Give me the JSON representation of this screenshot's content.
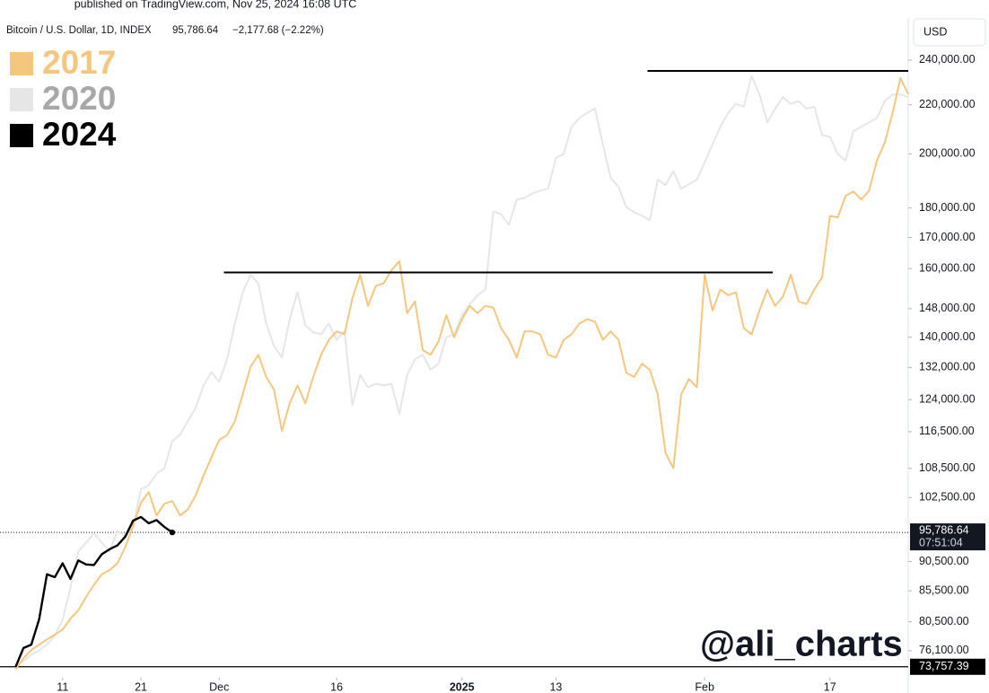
{
  "chart_data": {
    "type": "line",
    "source": "published on TradingView.com, Nov 25, 2024 16:08 UTC",
    "title": "Bitcoin / U.S. Dollar, 1D, INDEX",
    "price": "95,786.64",
    "change": "−2,177.68 (−2.22%)",
    "currency": "USD",
    "watermark": "@ali_charts",
    "countdown": "07:51:04",
    "log_scale": true,
    "grid": false,
    "legend": "top-left",
    "xlim": [
      -2,
      114
    ],
    "ylim": [
      72200,
      260500
    ],
    "xticks": [
      {
        "value": 6,
        "label": "11"
      },
      {
        "value": 16,
        "label": "21"
      },
      {
        "value": 26,
        "label": "Dec"
      },
      {
        "value": 41,
        "label": "16"
      },
      {
        "value": 57,
        "label": "2025",
        "bold": true
      },
      {
        "value": 69,
        "label": "13"
      },
      {
        "value": 88,
        "label": "Feb"
      },
      {
        "value": 104,
        "label": "17"
      }
    ],
    "yticks": [
      {
        "value": 240000,
        "label": "240,000.00"
      },
      {
        "value": 220000,
        "label": "220,000.00"
      },
      {
        "value": 200000,
        "label": "200,000.00"
      },
      {
        "value": 180000,
        "label": "180,000.00"
      },
      {
        "value": 170000,
        "label": "170,000.00"
      },
      {
        "value": 160000,
        "label": "160,000.00"
      },
      {
        "value": 148000,
        "label": "148,000.00"
      },
      {
        "value": 140000,
        "label": "140,000.00"
      },
      {
        "value": 132000,
        "label": "132,000.00"
      },
      {
        "value": 124000,
        "label": "124,000.00"
      },
      {
        "value": 116500,
        "label": "116,500.00"
      },
      {
        "value": 108500,
        "label": "108,500.00"
      },
      {
        "value": 102500,
        "label": "102,500.00"
      },
      {
        "value": 90500,
        "label": "90,500.00"
      },
      {
        "value": 85500,
        "label": "85,500.00"
      },
      {
        "value": 80500,
        "label": "80,500.00"
      },
      {
        "value": 76100,
        "label": "76,100.00"
      }
    ],
    "x": [
      0,
      1,
      2,
      3,
      4,
      5,
      6,
      7,
      8,
      9,
      10,
      11,
      12,
      13,
      14,
      15,
      16,
      17,
      18,
      19,
      20,
      21,
      22,
      23,
      24,
      25,
      26,
      27,
      28,
      29,
      30,
      31,
      32,
      33,
      34,
      35,
      36,
      37,
      38,
      39,
      40,
      41,
      42,
      43,
      44,
      45,
      46,
      47,
      48,
      49,
      50,
      51,
      52,
      53,
      54,
      55,
      56,
      57,
      58,
      59,
      60,
      61,
      62,
      63,
      64,
      65,
      66,
      67,
      68,
      69,
      70,
      71,
      72,
      73,
      74,
      75,
      76,
      77,
      78,
      79,
      80,
      81,
      82,
      83,
      84,
      85,
      86,
      87,
      88,
      89,
      90,
      91,
      92,
      93,
      94,
      95,
      96,
      97,
      98,
      99,
      100,
      101,
      102,
      103,
      104,
      105,
      106,
      107,
      108,
      109,
      110,
      111,
      112,
      113,
      114
    ],
    "series": [
      {
        "name": "2017",
        "color": "#f5c77e",
        "legend_text_color": "#f5c77e",
        "width": 2,
        "values": [
          73400,
          75000,
          76200,
          77000,
          77800,
          78500,
          79300,
          81000,
          82300,
          84500,
          86500,
          88300,
          89000,
          90200,
          93100,
          97000,
          101500,
          103600,
          99000,
          101300,
          101800,
          99000,
          100200,
          102900,
          107000,
          110800,
          114700,
          115700,
          118900,
          125300,
          132200,
          135300,
          129600,
          126400,
          116700,
          123100,
          127500,
          123100,
          129600,
          135300,
          139300,
          141600,
          140800,
          151000,
          158100,
          148800,
          154700,
          155500,
          159500,
          162300,
          146700,
          150100,
          136500,
          135300,
          138800,
          146100,
          140000,
          145000,
          148800,
          146700,
          148800,
          148300,
          142500,
          139300,
          134600,
          141600,
          141600,
          140800,
          135300,
          134600,
          139300,
          140800,
          143800,
          145000,
          144300,
          139300,
          141600,
          139300,
          130600,
          129600,
          133000,
          131400,
          125300,
          111800,
          108500,
          125300,
          129100,
          127000,
          158100,
          147500,
          153600,
          151900,
          152800,
          142500,
          140800,
          147500,
          153600,
          148800,
          151500,
          158100,
          150100,
          149300,
          153600,
          157300,
          177300,
          176700,
          184300,
          185900,
          183000,
          186200,
          197400,
          204400,
          216500,
          231800,
          224600
        ]
      },
      {
        "name": "2020",
        "color": "#e6e6e6",
        "legend_text_color": "#a8a8a8",
        "width": 2,
        "values": [
          73800,
          74600,
          75500,
          76100,
          77000,
          78400,
          80800,
          86000,
          92300,
          93900,
          95600,
          93900,
          92300,
          96100,
          95100,
          96800,
          104200,
          105000,
          107400,
          108500,
          114400,
          115800,
          118900,
          122100,
          127500,
          130800,
          128400,
          134100,
          143800,
          152800,
          158100,
          155500,
          143800,
          137600,
          134600,
          145000,
          152800,
          143300,
          141400,
          140800,
          143800,
          139300,
          141600,
          122700,
          130100,
          127000,
          127900,
          127500,
          127900,
          120600,
          130100,
          134100,
          135300,
          131400,
          133000,
          140000,
          140800,
          146100,
          149300,
          151900,
          153600,
          178800,
          177900,
          174200,
          183000,
          183600,
          185200,
          186200,
          186900,
          198400,
          200000,
          210800,
          214500,
          216600,
          218400,
          203700,
          190800,
          187500,
          180300,
          178500,
          177300,
          175800,
          190200,
          188200,
          193400,
          186900,
          188500,
          190200,
          196700,
          203700,
          210800,
          216600,
          220400,
          219200,
          232700,
          224500,
          212600,
          218400,
          223300,
          220400,
          221600,
          218400,
          219200,
          207400,
          206700,
          200000,
          197400,
          209000,
          210800,
          212600,
          214500,
          221600,
          224500,
          224500,
          223300
        ]
      },
      {
        "name": "2024",
        "color": "#000000",
        "legend_text_color": "#000000",
        "width": 2.4,
        "x": [
          0,
          1,
          2,
          3,
          4,
          5,
          6,
          7,
          8,
          9,
          10,
          11,
          12,
          13,
          14,
          15,
          16,
          17,
          18,
          19,
          20
        ],
        "values": [
          73757.39,
          76500,
          77000,
          80900,
          88300,
          87800,
          90200,
          87500,
          90700,
          90000,
          89900,
          91800,
          92700,
          93400,
          95000,
          98000,
          98700,
          97500,
          98100,
          96800,
          95786.64
        ]
      }
    ],
    "levels": [
      {
        "value": 158800,
        "x": [
          26.6,
          96.7
        ]
      },
      {
        "value": 235000,
        "x": [
          80.7,
          114
        ]
      }
    ],
    "last_price": {
      "value": 95786.64,
      "label": "95,786.64"
    },
    "low_price": {
      "value": 73757.39,
      "label": "73,757.39"
    }
  }
}
